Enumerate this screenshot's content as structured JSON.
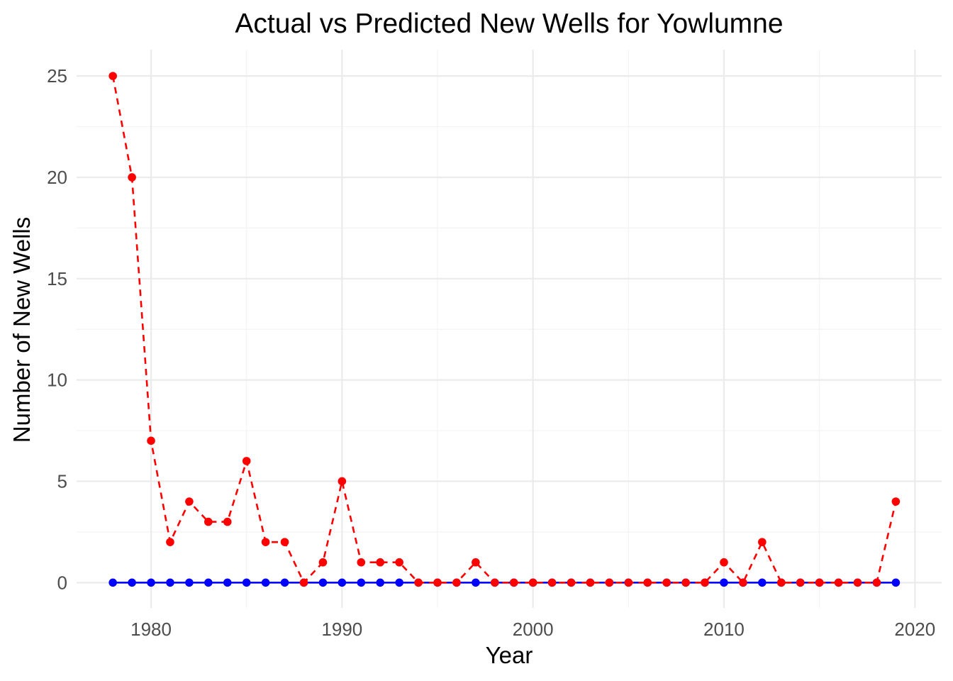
{
  "chart_data": {
    "type": "line",
    "title": "Actual vs Predicted New Wells for Yowlumne",
    "xlabel": "Year",
    "ylabel": "Number of New Wells",
    "xlim": [
      1976.1,
      2021.4
    ],
    "ylim": [
      -1.25,
      26.3
    ],
    "x_ticks": [
      1980,
      1990,
      2000,
      2010,
      2020
    ],
    "y_ticks": [
      0,
      5,
      10,
      15,
      20,
      25
    ],
    "grid": true,
    "legend": "none",
    "x": [
      1978,
      1979,
      1980,
      1981,
      1982,
      1983,
      1984,
      1985,
      1986,
      1987,
      1988,
      1989,
      1990,
      1991,
      1992,
      1993,
      1994,
      1995,
      1996,
      1997,
      1998,
      1999,
      2000,
      2001,
      2002,
      2003,
      2004,
      2005,
      2006,
      2007,
      2008,
      2009,
      2010,
      2011,
      2012,
      2013,
      2014,
      2015,
      2016,
      2017,
      2018,
      2019
    ],
    "series": [
      {
        "color": "#0000ff",
        "line_style": "solid",
        "values": [
          0,
          0,
          0,
          0,
          0,
          0,
          0,
          0,
          0,
          0,
          0,
          0,
          0,
          0,
          0,
          0,
          0,
          0,
          0,
          0,
          0,
          0,
          0,
          0,
          0,
          0,
          0,
          0,
          0,
          0,
          0,
          0,
          0,
          0,
          0,
          0,
          0,
          0,
          0,
          0,
          0,
          0
        ]
      },
      {
        "color": "#ff0000",
        "line_style": "dashed",
        "values": [
          25,
          20,
          7,
          2,
          4,
          3,
          3,
          6,
          2,
          2,
          0,
          1,
          5,
          1,
          1,
          1,
          0,
          0,
          0,
          1,
          0,
          0,
          0,
          0,
          0,
          0,
          0,
          0,
          0,
          0,
          0,
          0,
          1,
          0,
          2,
          0,
          0,
          0,
          0,
          0,
          0,
          4
        ]
      }
    ]
  }
}
